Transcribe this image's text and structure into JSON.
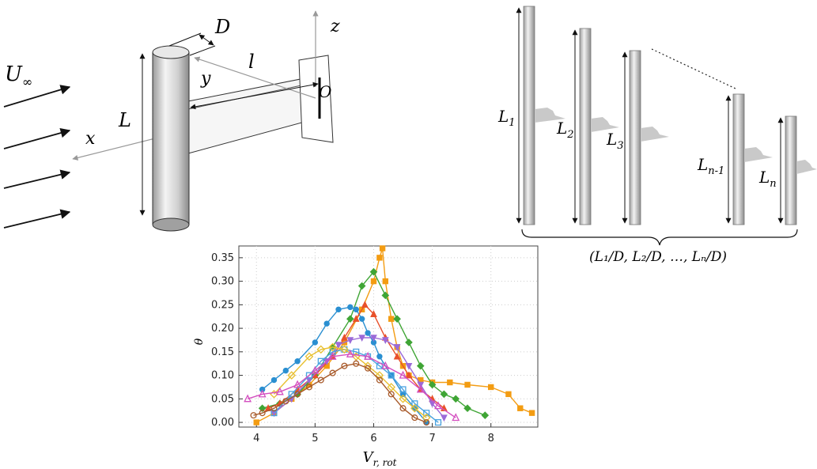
{
  "schematic": {
    "flow_label": "U",
    "flow_sub": "∞",
    "axis_x": "x",
    "axis_y": "y",
    "axis_z": "z",
    "origin": "O",
    "length_L": "L",
    "diameter_D": "D",
    "arm_l": "l"
  },
  "cylinders": {
    "labels": [
      {
        "main": "L",
        "sub": "1"
      },
      {
        "main": "L",
        "sub": "2"
      },
      {
        "main": "L",
        "sub": "3"
      },
      {
        "main": "L",
        "sub": "n-1"
      },
      {
        "main": "L",
        "sub": "n"
      }
    ],
    "ratio_label": "(L₁/D, L₂/D, …, Lₙ/D)"
  },
  "chart_data": {
    "type": "line",
    "xlabel": "V",
    "xlabel_sub": "r, rot",
    "ylabel": "θ",
    "xlim": [
      3.7,
      8.8
    ],
    "ylim": [
      -0.01,
      0.375
    ],
    "xticks": [
      4,
      5,
      6,
      7,
      8
    ],
    "yticks": [
      0.0,
      0.05,
      0.1,
      0.15,
      0.2,
      0.25,
      0.3,
      0.35
    ],
    "ytick_labels": [
      "0.00",
      "0.05",
      "0.10",
      "0.15",
      "0.20",
      "0.25",
      "0.30",
      "0.35"
    ],
    "grid": true,
    "series": [
      {
        "color": "#f39c12",
        "marker": "square",
        "x": [
          4.0,
          4.3,
          4.6,
          4.9,
          5.2,
          5.5,
          5.8,
          6.0,
          6.1,
          6.15,
          6.2,
          6.3,
          6.4,
          6.5,
          6.6,
          6.8,
          7.0,
          7.3,
          7.6,
          8.0,
          8.3,
          8.5,
          8.7
        ],
        "y": [
          0.0,
          0.02,
          0.05,
          0.08,
          0.12,
          0.17,
          0.24,
          0.3,
          0.35,
          0.37,
          0.3,
          0.22,
          0.16,
          0.12,
          0.1,
          0.09,
          0.085,
          0.085,
          0.08,
          0.075,
          0.06,
          0.03,
          0.02
        ]
      },
      {
        "color": "#3fa535",
        "marker": "diamond",
        "x": [
          4.1,
          4.4,
          4.7,
          5.0,
          5.3,
          5.6,
          5.8,
          6.0,
          6.2,
          6.4,
          6.6,
          6.8,
          7.0,
          7.2,
          7.4,
          7.6,
          7.9
        ],
        "y": [
          0.03,
          0.04,
          0.06,
          0.1,
          0.16,
          0.22,
          0.29,
          0.32,
          0.27,
          0.22,
          0.17,
          0.12,
          0.08,
          0.06,
          0.05,
          0.03,
          0.015
        ]
      },
      {
        "color": "#2a8fd1",
        "marker": "circle",
        "x": [
          4.1,
          4.3,
          4.5,
          4.7,
          5.0,
          5.2,
          5.4,
          5.6,
          5.7,
          5.8,
          5.9,
          6.0,
          6.1,
          6.3,
          6.5,
          6.7,
          6.9
        ],
        "y": [
          0.07,
          0.09,
          0.11,
          0.13,
          0.17,
          0.21,
          0.24,
          0.245,
          0.24,
          0.22,
          0.19,
          0.17,
          0.14,
          0.1,
          0.06,
          0.03,
          0.0
        ]
      },
      {
        "color": "#e8502a",
        "marker": "triangle",
        "x": [
          4.2,
          4.4,
          4.7,
          5.0,
          5.3,
          5.5,
          5.7,
          5.85,
          6.0,
          6.2,
          6.4,
          6.6,
          6.8,
          7.0,
          7.2
        ],
        "y": [
          0.03,
          0.04,
          0.07,
          0.1,
          0.14,
          0.18,
          0.22,
          0.25,
          0.23,
          0.18,
          0.14,
          0.1,
          0.07,
          0.05,
          0.03
        ]
      },
      {
        "color": "#9b6ad8",
        "marker": "triangle-down",
        "x": [
          4.3,
          4.6,
          4.9,
          5.2,
          5.4,
          5.6,
          5.8,
          6.0,
          6.2,
          6.4,
          6.6,
          6.8,
          7.0,
          7.2
        ],
        "y": [
          0.02,
          0.05,
          0.09,
          0.13,
          0.165,
          0.175,
          0.18,
          0.18,
          0.175,
          0.16,
          0.12,
          0.08,
          0.04,
          0.01
        ]
      },
      {
        "color": "#4aa3e0",
        "marker": "square-open",
        "x": [
          4.3,
          4.6,
          4.9,
          5.1,
          5.3,
          5.5,
          5.7,
          5.9,
          6.1,
          6.3,
          6.5,
          6.7,
          6.9,
          7.1
        ],
        "y": [
          0.02,
          0.06,
          0.1,
          0.13,
          0.15,
          0.155,
          0.15,
          0.14,
          0.12,
          0.1,
          0.07,
          0.04,
          0.02,
          0.0
        ]
      },
      {
        "color": "#e8c030",
        "marker": "diamond-open",
        "x": [
          4.3,
          4.6,
          4.9,
          5.1,
          5.3,
          5.5,
          5.7,
          5.9,
          6.1,
          6.3,
          6.5,
          6.7,
          6.9
        ],
        "y": [
          0.06,
          0.1,
          0.14,
          0.155,
          0.16,
          0.155,
          0.14,
          0.12,
          0.1,
          0.075,
          0.05,
          0.03,
          0.01
        ]
      },
      {
        "color": "#d44fc0",
        "marker": "triangle-open",
        "x": [
          3.85,
          4.1,
          4.4,
          4.7,
          5.0,
          5.3,
          5.6,
          5.9,
          6.2,
          6.5,
          6.8,
          7.1,
          7.4
        ],
        "y": [
          0.05,
          0.06,
          0.065,
          0.08,
          0.11,
          0.14,
          0.145,
          0.14,
          0.12,
          0.1,
          0.07,
          0.035,
          0.01
        ]
      },
      {
        "color": "#a85a2a",
        "marker": "circle-open",
        "x": [
          3.95,
          4.1,
          4.3,
          4.5,
          4.7,
          4.9,
          5.1,
          5.3,
          5.5,
          5.7,
          5.9,
          6.1,
          6.3,
          6.5,
          6.7,
          6.9
        ],
        "y": [
          0.015,
          0.02,
          0.03,
          0.045,
          0.06,
          0.075,
          0.09,
          0.105,
          0.12,
          0.125,
          0.115,
          0.09,
          0.06,
          0.03,
          0.01,
          0.0
        ]
      }
    ]
  }
}
